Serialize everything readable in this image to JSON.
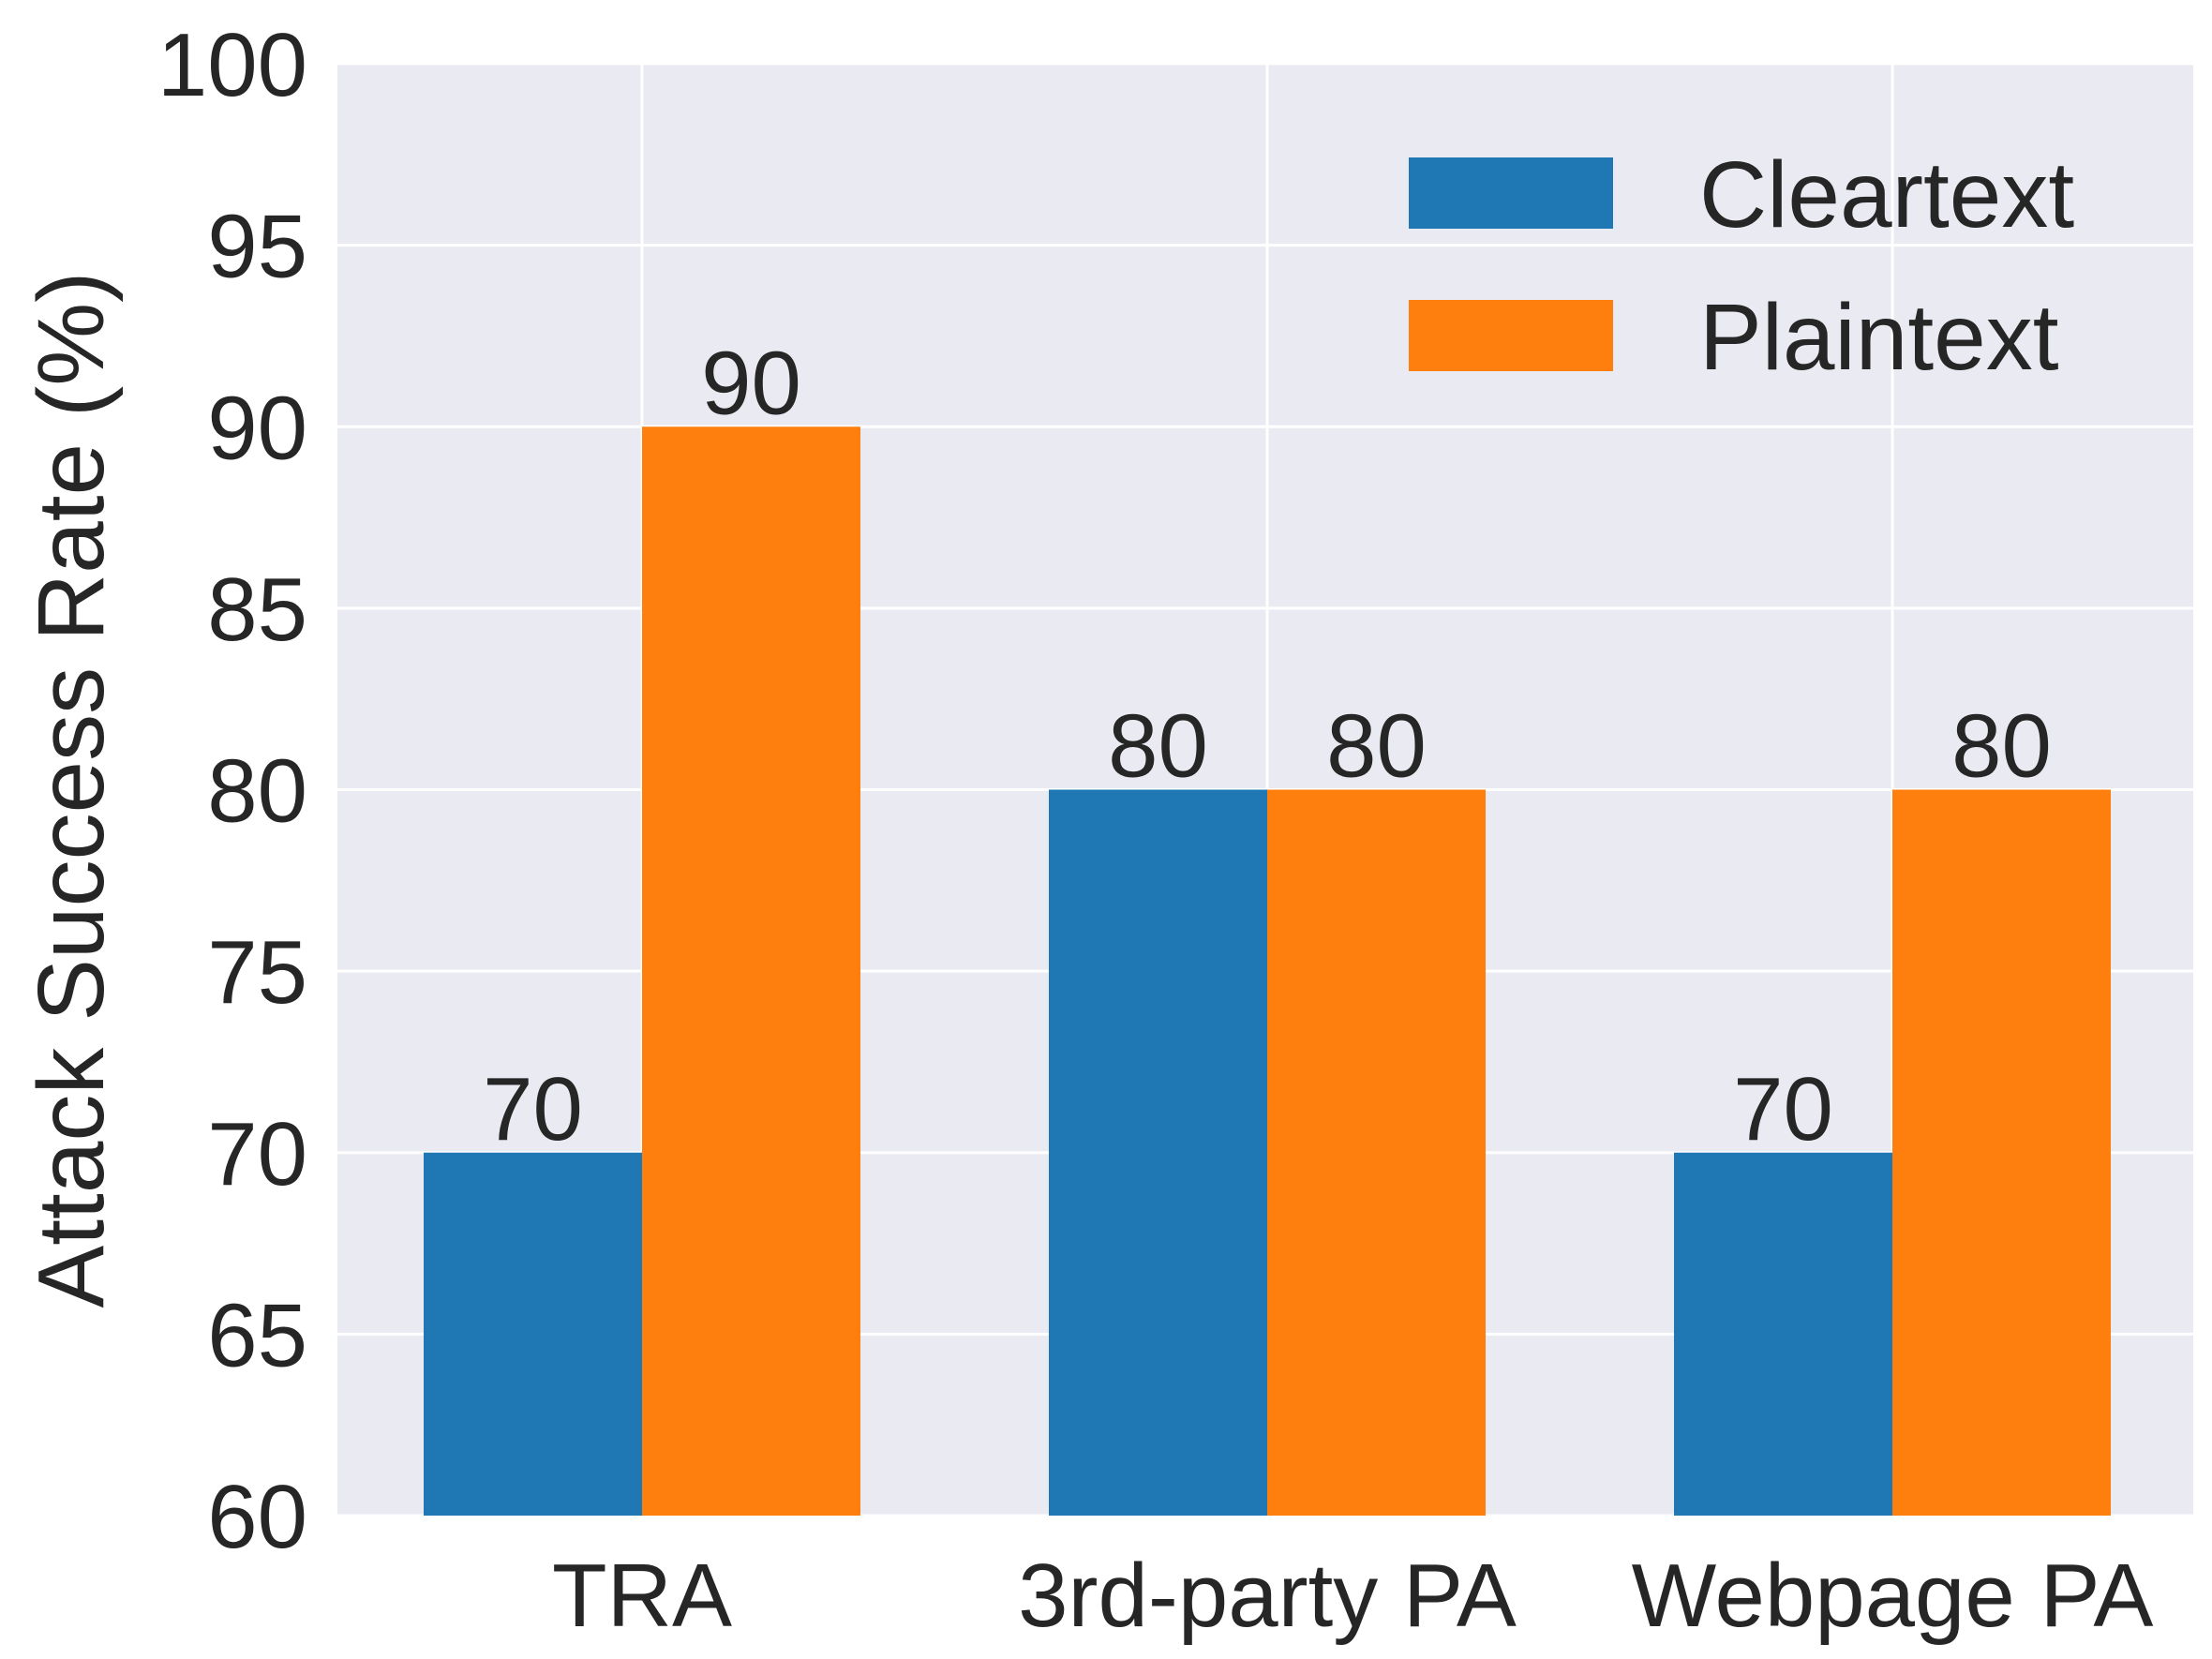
{
  "chart_data": {
    "type": "bar",
    "title": "",
    "xlabel": "",
    "ylabel": "Attack Success Rate (%)",
    "ylim": [
      60,
      100
    ],
    "yticks": [
      60,
      65,
      70,
      75,
      80,
      85,
      90,
      95,
      100
    ],
    "grid": true,
    "legend_position": "top-right",
    "background_color": "#EAEAF2",
    "categories": [
      "TRA",
      "3rd-party PA",
      "Webpage PA"
    ],
    "series": [
      {
        "name": "Cleartext",
        "color": "#1F77B4",
        "values": [
          70,
          80,
          70
        ]
      },
      {
        "name": "Plaintext",
        "color": "#FF7F0E",
        "values": [
          90,
          80,
          80
        ]
      }
    ]
  }
}
